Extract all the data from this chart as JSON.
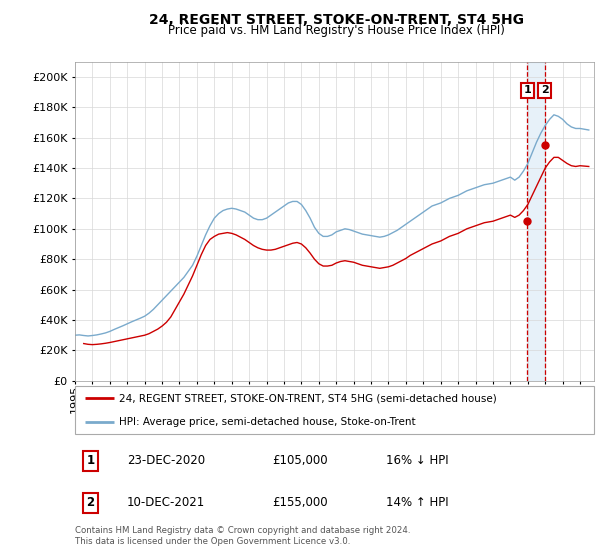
{
  "title": "24, REGENT STREET, STOKE-ON-TRENT, ST4 5HG",
  "subtitle": "Price paid vs. HM Land Registry's House Price Index (HPI)",
  "ylim": [
    0,
    210000
  ],
  "yticks": [
    0,
    20000,
    40000,
    60000,
    80000,
    100000,
    120000,
    140000,
    160000,
    180000,
    200000
  ],
  "xlim_start": 1995.0,
  "xlim_end": 2024.8,
  "legend_line1": "24, REGENT STREET, STOKE-ON-TRENT, ST4 5HG (semi-detached house)",
  "legend_line2": "HPI: Average price, semi-detached house, Stoke-on-Trent",
  "annotation1_num": "1",
  "annotation1_date": "23-DEC-2020",
  "annotation1_price": "£105,000",
  "annotation1_pct": "16% ↓ HPI",
  "annotation2_num": "2",
  "annotation2_date": "10-DEC-2021",
  "annotation2_price": "£155,000",
  "annotation2_pct": "14% ↑ HPI",
  "footnote": "Contains HM Land Registry data © Crown copyright and database right 2024.\nThis data is licensed under the Open Government Licence v3.0.",
  "color_red": "#cc0000",
  "color_blue": "#7aaacc",
  "color_dashed": "#cc0000",
  "color_shade": "#d0e4f5",
  "hpi_line": [
    [
      1995.0,
      30000
    ],
    [
      1995.25,
      30200
    ],
    [
      1995.5,
      29800
    ],
    [
      1995.75,
      29500
    ],
    [
      1996.0,
      29800
    ],
    [
      1996.25,
      30200
    ],
    [
      1996.5,
      30800
    ],
    [
      1996.75,
      31500
    ],
    [
      1997.0,
      32500
    ],
    [
      1997.25,
      33800
    ],
    [
      1997.5,
      35000
    ],
    [
      1997.75,
      36200
    ],
    [
      1998.0,
      37500
    ],
    [
      1998.25,
      38800
    ],
    [
      1998.5,
      40000
    ],
    [
      1998.75,
      41200
    ],
    [
      1999.0,
      42500
    ],
    [
      1999.25,
      44500
    ],
    [
      1999.5,
      47000
    ],
    [
      1999.75,
      50000
    ],
    [
      2000.0,
      53000
    ],
    [
      2000.25,
      56000
    ],
    [
      2000.5,
      59000
    ],
    [
      2000.75,
      62000
    ],
    [
      2001.0,
      65000
    ],
    [
      2001.25,
      68000
    ],
    [
      2001.5,
      72000
    ],
    [
      2001.75,
      76000
    ],
    [
      2002.0,
      82000
    ],
    [
      2002.25,
      89000
    ],
    [
      2002.5,
      96000
    ],
    [
      2002.75,
      102000
    ],
    [
      2003.0,
      107000
    ],
    [
      2003.25,
      110000
    ],
    [
      2003.5,
      112000
    ],
    [
      2003.75,
      113000
    ],
    [
      2004.0,
      113500
    ],
    [
      2004.25,
      113000
    ],
    [
      2004.5,
      112000
    ],
    [
      2004.75,
      111000
    ],
    [
      2005.0,
      109000
    ],
    [
      2005.25,
      107000
    ],
    [
      2005.5,
      106000
    ],
    [
      2005.75,
      106000
    ],
    [
      2006.0,
      107000
    ],
    [
      2006.25,
      109000
    ],
    [
      2006.5,
      111000
    ],
    [
      2006.75,
      113000
    ],
    [
      2007.0,
      115000
    ],
    [
      2007.25,
      117000
    ],
    [
      2007.5,
      118000
    ],
    [
      2007.75,
      118000
    ],
    [
      2008.0,
      116000
    ],
    [
      2008.25,
      112000
    ],
    [
      2008.5,
      107000
    ],
    [
      2008.75,
      101000
    ],
    [
      2009.0,
      97000
    ],
    [
      2009.25,
      95000
    ],
    [
      2009.5,
      95000
    ],
    [
      2009.75,
      96000
    ],
    [
      2010.0,
      98000
    ],
    [
      2010.25,
      99000
    ],
    [
      2010.5,
      100000
    ],
    [
      2010.75,
      99500
    ],
    [
      2011.0,
      98500
    ],
    [
      2011.25,
      97500
    ],
    [
      2011.5,
      96500
    ],
    [
      2011.75,
      96000
    ],
    [
      2012.0,
      95500
    ],
    [
      2012.25,
      95000
    ],
    [
      2012.5,
      94500
    ],
    [
      2012.75,
      95000
    ],
    [
      2013.0,
      96000
    ],
    [
      2013.25,
      97500
    ],
    [
      2013.5,
      99000
    ],
    [
      2013.75,
      101000
    ],
    [
      2014.0,
      103000
    ],
    [
      2014.25,
      105000
    ],
    [
      2014.5,
      107000
    ],
    [
      2014.75,
      109000
    ],
    [
      2015.0,
      111000
    ],
    [
      2015.25,
      113000
    ],
    [
      2015.5,
      115000
    ],
    [
      2015.75,
      116000
    ],
    [
      2016.0,
      117000
    ],
    [
      2016.25,
      118500
    ],
    [
      2016.5,
      120000
    ],
    [
      2016.75,
      121000
    ],
    [
      2017.0,
      122000
    ],
    [
      2017.25,
      123500
    ],
    [
      2017.5,
      125000
    ],
    [
      2017.75,
      126000
    ],
    [
      2018.0,
      127000
    ],
    [
      2018.25,
      128000
    ],
    [
      2018.5,
      129000
    ],
    [
      2018.75,
      129500
    ],
    [
      2019.0,
      130000
    ],
    [
      2019.25,
      131000
    ],
    [
      2019.5,
      132000
    ],
    [
      2019.75,
      133000
    ],
    [
      2020.0,
      134000
    ],
    [
      2020.25,
      132000
    ],
    [
      2020.5,
      134000
    ],
    [
      2020.75,
      138000
    ],
    [
      2021.0,
      143000
    ],
    [
      2021.25,
      150000
    ],
    [
      2021.5,
      157000
    ],
    [
      2021.75,
      163000
    ],
    [
      2022.0,
      168000
    ],
    [
      2022.25,
      172000
    ],
    [
      2022.5,
      175000
    ],
    [
      2022.75,
      174000
    ],
    [
      2023.0,
      172000
    ],
    [
      2023.25,
      169000
    ],
    [
      2023.5,
      167000
    ],
    [
      2023.75,
      166000
    ],
    [
      2024.0,
      166000
    ],
    [
      2024.5,
      165000
    ]
  ],
  "price_line": [
    [
      1995.5,
      24500
    ],
    [
      1995.75,
      24000
    ],
    [
      1996.0,
      23800
    ],
    [
      1996.25,
      24000
    ],
    [
      1996.5,
      24300
    ],
    [
      1996.75,
      24700
    ],
    [
      1997.0,
      25200
    ],
    [
      1997.25,
      25800
    ],
    [
      1997.5,
      26400
    ],
    [
      1997.75,
      27000
    ],
    [
      1998.0,
      27600
    ],
    [
      1998.25,
      28200
    ],
    [
      1998.5,
      28800
    ],
    [
      1998.75,
      29400
    ],
    [
      1999.0,
      30000
    ],
    [
      1999.25,
      31000
    ],
    [
      1999.5,
      32500
    ],
    [
      1999.75,
      34000
    ],
    [
      2000.0,
      36000
    ],
    [
      2000.25,
      38500
    ],
    [
      2000.5,
      42000
    ],
    [
      2000.75,
      47000
    ],
    [
      2001.0,
      52000
    ],
    [
      2001.25,
      57000
    ],
    [
      2001.5,
      63000
    ],
    [
      2001.75,
      69000
    ],
    [
      2002.0,
      76000
    ],
    [
      2002.25,
      83000
    ],
    [
      2002.5,
      89000
    ],
    [
      2002.75,
      93000
    ],
    [
      2003.0,
      95000
    ],
    [
      2003.25,
      96500
    ],
    [
      2003.5,
      97000
    ],
    [
      2003.75,
      97500
    ],
    [
      2004.0,
      97000
    ],
    [
      2004.25,
      96000
    ],
    [
      2004.5,
      94500
    ],
    [
      2004.75,
      93000
    ],
    [
      2005.0,
      91000
    ],
    [
      2005.25,
      89000
    ],
    [
      2005.5,
      87500
    ],
    [
      2005.75,
      86500
    ],
    [
      2006.0,
      86000
    ],
    [
      2006.25,
      86000
    ],
    [
      2006.5,
      86500
    ],
    [
      2006.75,
      87500
    ],
    [
      2007.0,
      88500
    ],
    [
      2007.25,
      89500
    ],
    [
      2007.5,
      90500
    ],
    [
      2007.75,
      91000
    ],
    [
      2008.0,
      90000
    ],
    [
      2008.25,
      87500
    ],
    [
      2008.5,
      84000
    ],
    [
      2008.75,
      80000
    ],
    [
      2009.0,
      77000
    ],
    [
      2009.25,
      75500
    ],
    [
      2009.5,
      75500
    ],
    [
      2009.75,
      76000
    ],
    [
      2010.0,
      77500
    ],
    [
      2010.25,
      78500
    ],
    [
      2010.5,
      79000
    ],
    [
      2010.75,
      78500
    ],
    [
      2011.0,
      78000
    ],
    [
      2011.25,
      77000
    ],
    [
      2011.5,
      76000
    ],
    [
      2011.75,
      75500
    ],
    [
      2012.0,
      75000
    ],
    [
      2012.25,
      74500
    ],
    [
      2012.5,
      74000
    ],
    [
      2012.75,
      74500
    ],
    [
      2013.0,
      75000
    ],
    [
      2013.25,
      76000
    ],
    [
      2013.5,
      77500
    ],
    [
      2013.75,
      79000
    ],
    [
      2014.0,
      80500
    ],
    [
      2014.25,
      82500
    ],
    [
      2014.5,
      84000
    ],
    [
      2014.75,
      85500
    ],
    [
      2015.0,
      87000
    ],
    [
      2015.25,
      88500
    ],
    [
      2015.5,
      90000
    ],
    [
      2015.75,
      91000
    ],
    [
      2016.0,
      92000
    ],
    [
      2016.25,
      93500
    ],
    [
      2016.5,
      95000
    ],
    [
      2016.75,
      96000
    ],
    [
      2017.0,
      97000
    ],
    [
      2017.25,
      98500
    ],
    [
      2017.5,
      100000
    ],
    [
      2017.75,
      101000
    ],
    [
      2018.0,
      102000
    ],
    [
      2018.25,
      103000
    ],
    [
      2018.5,
      104000
    ],
    [
      2018.75,
      104500
    ],
    [
      2019.0,
      105000
    ],
    [
      2019.25,
      106000
    ],
    [
      2019.5,
      107000
    ],
    [
      2019.75,
      108000
    ],
    [
      2020.0,
      109000
    ],
    [
      2020.25,
      107500
    ],
    [
      2020.5,
      109000
    ],
    [
      2020.75,
      112000
    ],
    [
      2021.0,
      116000
    ],
    [
      2021.25,
      122000
    ],
    [
      2021.5,
      128000
    ],
    [
      2021.75,
      134000
    ],
    [
      2022.0,
      140000
    ],
    [
      2022.25,
      144000
    ],
    [
      2022.5,
      147000
    ],
    [
      2022.75,
      147000
    ],
    [
      2023.0,
      145000
    ],
    [
      2023.25,
      143000
    ],
    [
      2023.5,
      141500
    ],
    [
      2023.75,
      141000
    ],
    [
      2024.0,
      141500
    ],
    [
      2024.5,
      141000
    ]
  ],
  "sale1_x": 2020.97,
  "sale1_y": 105000,
  "sale2_x": 2021.97,
  "sale2_y": 155000,
  "xtick_years": [
    1995,
    1996,
    1997,
    1998,
    1999,
    2000,
    2001,
    2002,
    2003,
    2004,
    2005,
    2006,
    2007,
    2008,
    2009,
    2010,
    2011,
    2012,
    2013,
    2014,
    2015,
    2016,
    2017,
    2018,
    2019,
    2020,
    2021,
    2022,
    2023,
    2024
  ]
}
